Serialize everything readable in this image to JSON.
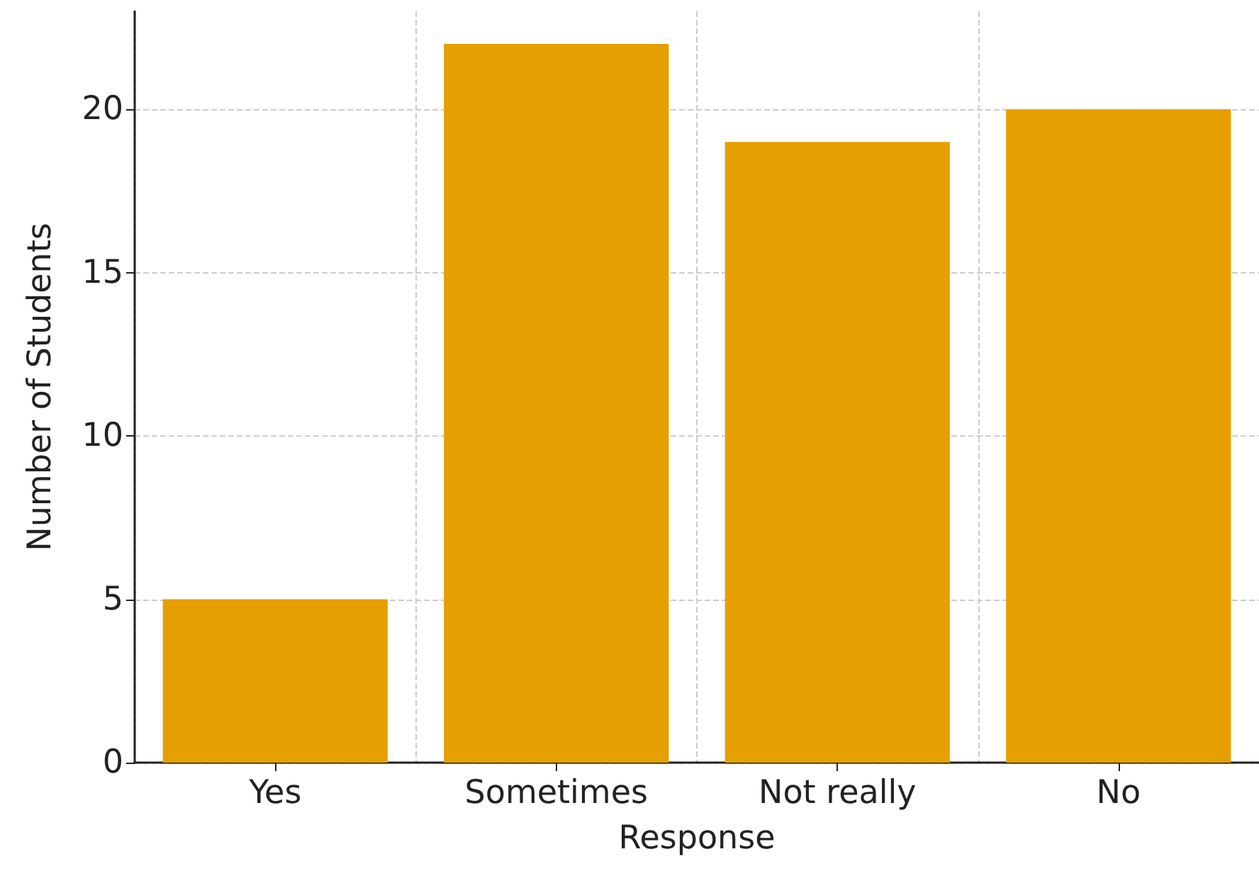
{
  "chart_data": {
    "type": "bar",
    "xlabel": "Response",
    "ylabel": "Number of Students",
    "categories": [
      "Yes",
      "Sometimes",
      "Not really",
      "No"
    ],
    "values": [
      5,
      22,
      19,
      20
    ],
    "color": "#e69f00",
    "ylim": [
      0,
      23
    ],
    "yticks": [
      0,
      5,
      10,
      15,
      20
    ],
    "grid": true
  }
}
